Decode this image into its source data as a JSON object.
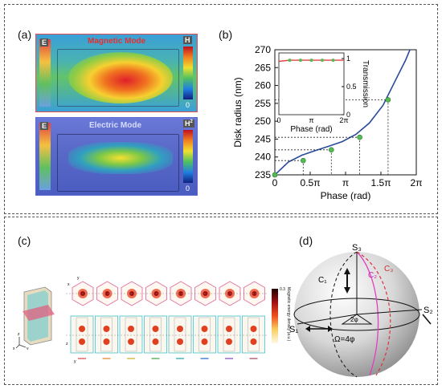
{
  "panels": {
    "a": {
      "label": "(a)",
      "magnetic": {
        "title": "Magnetic Mode",
        "left_axis": "E",
        "right_axis": "H",
        "zero": "0"
      },
      "electric": {
        "title": "Electric Mode",
        "left_axis": "E",
        "right_axis": "H",
        "right_sup": "2",
        "zero": "0"
      }
    },
    "b": {
      "label": "(b)"
    },
    "c": {
      "label": "(c)",
      "colorbar_label": "Magnetic energy density (a.u.)",
      "colorbar_max": "0.3",
      "axes_top": [
        "x",
        "y"
      ],
      "axes_bottom": [
        "z",
        "y"
      ],
      "axes_3d": [
        "z",
        "x",
        "y"
      ]
    },
    "d": {
      "label": "(d)",
      "s1": "S₁",
      "s2": "S₂",
      "s3": "S₃",
      "c1": "C₁",
      "c2": "C₂",
      "c3": "C₃",
      "angle": "2φ",
      "omega": "Ω=4φ"
    }
  },
  "chart_data": {
    "type": "line",
    "xlabel": "Phase (rad)",
    "ylabel": "Disk radius (nm)",
    "xlim": [
      0,
      6.2832
    ],
    "ylim": [
      235,
      270
    ],
    "xticks": [
      0,
      1.5708,
      3.1416,
      4.7124,
      6.2832
    ],
    "xtick_labels": [
      "0",
      "0.5π",
      "π",
      "1.5π",
      "2π"
    ],
    "yticks": [
      235,
      240,
      245,
      250,
      255,
      260,
      265,
      270
    ],
    "ytick_labels": [
      "235",
      "240",
      "245",
      "250",
      "255",
      "260",
      "265",
      "270"
    ],
    "series": [
      {
        "x": [
          0,
          0.6,
          1.2,
          1.8,
          2.4,
          3.0,
          3.6,
          4.2,
          4.8,
          5.4,
          5.8,
          6.0
        ],
        "y": [
          235,
          238.6,
          240.5,
          241.8,
          243.0,
          244.3,
          246.3,
          249.5,
          254.4,
          262.0,
          267.0,
          270.0
        ],
        "color": "#2a4b9b"
      }
    ],
    "markers": {
      "x": [
        0,
        1.26,
        2.51,
        3.77,
        5.03
      ],
      "y": [
        235.0,
        239.0,
        242.0,
        245.5,
        256.0
      ],
      "color": "#55bb55"
    },
    "inset": {
      "xlabel": "Phase (rad)",
      "ylabel": "Transmission",
      "xticks": [
        0,
        3.1416,
        6.2832
      ],
      "xtick_labels": [
        "0",
        "π",
        "2π"
      ],
      "yticks": [
        0,
        0.5,
        1
      ],
      "ytick_labels": [
        "0",
        "0.5",
        "1"
      ],
      "xlim": [
        0,
        6.2832
      ],
      "ylim": [
        0,
        1.1
      ],
      "x": [
        0,
        1.05,
        2.09,
        3.14,
        4.19,
        5.24,
        6.28
      ],
      "y": [
        0.95,
        0.97,
        0.97,
        0.97,
        0.97,
        0.97,
        0.97
      ],
      "color": "#e04040"
    }
  }
}
